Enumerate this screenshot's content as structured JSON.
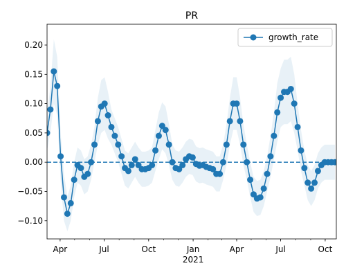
{
  "chart_data": {
    "type": "line",
    "title": "PR",
    "x": [
      "2020-03-05",
      "2020-03-12",
      "2020-03-19",
      "2020-03-26",
      "2020-04-02",
      "2020-04-09",
      "2020-04-16",
      "2020-04-23",
      "2020-04-30",
      "2020-05-07",
      "2020-05-14",
      "2020-05-21",
      "2020-05-28",
      "2020-06-04",
      "2020-06-11",
      "2020-06-18",
      "2020-06-25",
      "2020-07-02",
      "2020-07-09",
      "2020-07-16",
      "2020-07-23",
      "2020-07-30",
      "2020-08-06",
      "2020-08-13",
      "2020-08-20",
      "2020-08-27",
      "2020-09-03",
      "2020-09-10",
      "2020-09-17",
      "2020-09-24",
      "2020-10-01",
      "2020-10-08",
      "2020-10-15",
      "2020-10-22",
      "2020-10-29",
      "2020-11-05",
      "2020-11-12",
      "2020-11-19",
      "2020-11-26",
      "2020-12-03",
      "2020-12-10",
      "2020-12-17",
      "2020-12-24",
      "2020-12-31",
      "2021-01-07",
      "2021-01-14",
      "2021-01-21",
      "2021-01-28",
      "2021-02-04",
      "2021-02-11",
      "2021-02-18",
      "2021-02-25",
      "2021-03-04",
      "2021-03-11",
      "2021-03-18",
      "2021-03-25",
      "2021-04-01",
      "2021-04-08",
      "2021-04-15",
      "2021-04-22",
      "2021-04-29",
      "2021-05-06",
      "2021-05-13",
      "2021-05-20",
      "2021-05-27",
      "2021-06-03",
      "2021-06-10",
      "2021-06-17",
      "2021-06-24",
      "2021-07-01",
      "2021-07-08",
      "2021-07-15",
      "2021-07-22",
      "2021-07-29",
      "2021-08-05",
      "2021-08-12",
      "2021-08-19",
      "2021-08-26",
      "2021-09-02",
      "2021-09-09",
      "2021-09-16",
      "2021-09-23",
      "2021-09-30",
      "2021-10-07",
      "2021-10-14",
      "2021-10-21"
    ],
    "series": [
      {
        "name": "growth_rate",
        "color": "#1f77b4",
        "values": [
          0.05,
          0.09,
          0.155,
          0.13,
          0.01,
          -0.06,
          -0.088,
          -0.07,
          -0.03,
          -0.005,
          -0.01,
          -0.025,
          -0.02,
          0,
          0.03,
          0.07,
          0.095,
          0.1,
          0.08,
          0.06,
          0.045,
          0.03,
          0.01,
          -0.01,
          -0.015,
          -0.005,
          0.005,
          -0.005,
          -0.012,
          -0.012,
          -0.01,
          -0.005,
          0.02,
          0.045,
          0.062,
          0.055,
          0.03,
          0,
          -0.01,
          -0.012,
          -0.005,
          0.005,
          0.01,
          0.008,
          -0.003,
          -0.006,
          -0.005,
          -0.008,
          -0.01,
          -0.012,
          -0.02,
          -0.02,
          0,
          0.03,
          0.07,
          0.1,
          0.1,
          0.07,
          0.03,
          0,
          -0.03,
          -0.055,
          -0.062,
          -0.06,
          -0.045,
          -0.02,
          0.01,
          0.045,
          0.085,
          0.11,
          0.12,
          0.12,
          0.125,
          0.1,
          0.06,
          0.02,
          -0.01,
          -0.035,
          -0.045,
          -0.035,
          -0.015,
          -0.005,
          0,
          0,
          0,
          0
        ]
      }
    ],
    "band": {
      "color": "#1f77b4",
      "upper": [
        0.08,
        0.13,
        0.21,
        0.18,
        0.05,
        -0.02,
        -0.058,
        -0.04,
        0,
        0.025,
        0.02,
        0.005,
        0.01,
        0.03,
        0.06,
        0.11,
        0.14,
        0.145,
        0.12,
        0.09,
        0.075,
        0.06,
        0.04,
        0.02,
        0.015,
        0.025,
        0.035,
        0.025,
        0.018,
        0.018,
        0.02,
        0.025,
        0.055,
        0.085,
        0.102,
        0.095,
        0.065,
        0.03,
        0.02,
        0.018,
        0.025,
        0.035,
        0.04,
        0.038,
        0.027,
        0.024,
        0.025,
        0.022,
        0.02,
        0.018,
        0.01,
        0.01,
        0.03,
        0.065,
        0.11,
        0.145,
        0.145,
        0.11,
        0.065,
        0.03,
        0,
        -0.025,
        -0.032,
        -0.03,
        -0.015,
        0.01,
        0.045,
        0.085,
        0.135,
        0.16,
        0.175,
        0.175,
        0.18,
        0.15,
        0.1,
        0.055,
        0.02,
        -0.005,
        -0.015,
        -0.005,
        0.015,
        0.025,
        0.03,
        0.03,
        0.03,
        0.03
      ],
      "lower": [
        0.02,
        0.05,
        0.1,
        0.08,
        -0.03,
        -0.1,
        -0.118,
        -0.1,
        -0.06,
        -0.035,
        -0.04,
        -0.055,
        -0.05,
        -0.03,
        0,
        0.03,
        0.05,
        0.055,
        0.04,
        0.03,
        0.015,
        0,
        -0.02,
        -0.04,
        -0.045,
        -0.035,
        -0.025,
        -0.035,
        -0.042,
        -0.042,
        -0.04,
        -0.035,
        -0.015,
        0.005,
        0.022,
        0.015,
        -0.005,
        -0.03,
        -0.04,
        -0.042,
        -0.035,
        -0.025,
        -0.02,
        -0.022,
        -0.033,
        -0.036,
        -0.035,
        -0.038,
        -0.04,
        -0.042,
        -0.05,
        -0.05,
        -0.03,
        -0.005,
        0.03,
        0.055,
        0.055,
        0.03,
        -0.005,
        -0.03,
        -0.06,
        -0.085,
        -0.092,
        -0.09,
        -0.075,
        -0.05,
        -0.025,
        0.005,
        0.035,
        0.06,
        0.065,
        0.065,
        0.07,
        0.05,
        0.02,
        -0.015,
        -0.04,
        -0.065,
        -0.075,
        -0.065,
        -0.045,
        -0.035,
        -0.03,
        -0.03,
        -0.03,
        -0.03
      ]
    },
    "hline": 0,
    "xlim": [
      "2020-03-05",
      "2021-10-24"
    ],
    "xticks": [
      {
        "value": "2020-04-01",
        "label": "Apr"
      },
      {
        "value": "2020-07-01",
        "label": "Jul"
      },
      {
        "value": "2020-10-01",
        "label": "Oct"
      },
      {
        "value": "2021-01-01",
        "label": "Jan"
      },
      {
        "value": "2021-04-01",
        "label": "Apr"
      },
      {
        "value": "2021-07-01",
        "label": "Jul"
      },
      {
        "value": "2021-10-01",
        "label": "Oct"
      }
    ],
    "x_offset_label": "2021",
    "ylim": [
      -0.131,
      0.2355
    ],
    "yticks": [
      {
        "value": -0.1,
        "label": "−0.10"
      },
      {
        "value": -0.05,
        "label": "−0.05"
      },
      {
        "value": 0,
        "label": "0.00"
      },
      {
        "value": 0.05,
        "label": "0.05"
      },
      {
        "value": 0.1,
        "label": "0.10"
      },
      {
        "value": 0.15,
        "label": "0.15"
      },
      {
        "value": 0.2,
        "label": "0.20"
      }
    ],
    "legend": "upper right"
  }
}
